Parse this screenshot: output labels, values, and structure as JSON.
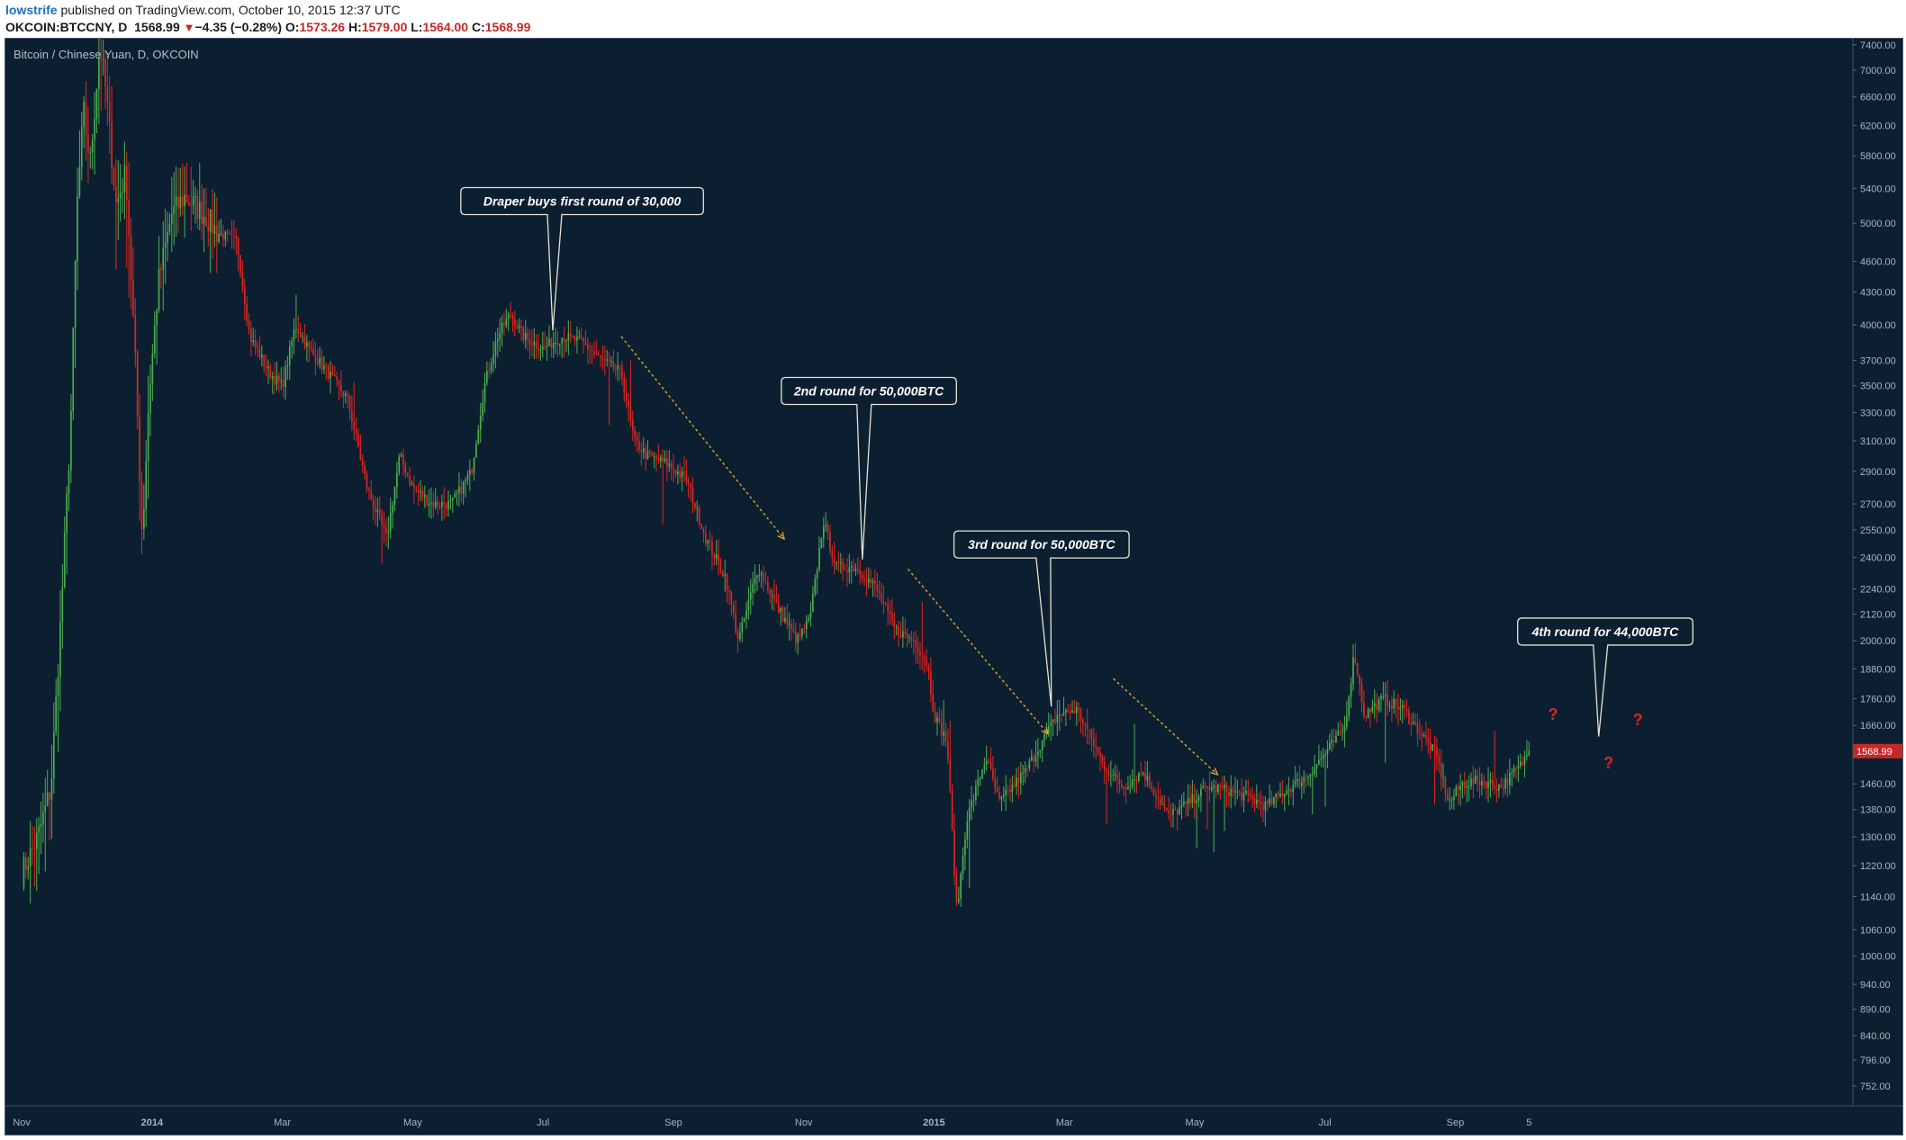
{
  "header": {
    "user": "lowstrife",
    "published_text": "published on TradingView.com, October 10, 2015 12:37 UTC",
    "symbol": "OKCOIN:BTCCNY, D",
    "last": "1568.99",
    "change_arrow": "▼",
    "change": "−4.35 (−0.28%)",
    "o_label": "O:",
    "o_value": "1573.26",
    "h_label": "H:",
    "h_value": "1579.00",
    "l_label": "L:",
    "l_value": "1564.00",
    "c_label": "C:",
    "c_value": "1568.99"
  },
  "colors": {
    "background": "#0c1f31",
    "up": "#4caf50",
    "down": "#e0261f",
    "annotation_border": "#e8e2cf",
    "dashed_arrow": "#e2a42a",
    "question_mark": "#e0261f",
    "price_label_bg": "#c62828",
    "axis_text": "#aab4bf"
  },
  "chart_data": {
    "type": "candlestick",
    "title": "Bitcoin / Chinese Yuan, D, OKCOIN",
    "scale": "log",
    "x_unit": "month index (0 = Nov 1 2013)",
    "x_ticks": [
      {
        "t": 0.0,
        "label": "Nov"
      },
      {
        "t": 2.0,
        "label": "2014"
      },
      {
        "t": 4.0,
        "label": "Mar"
      },
      {
        "t": 6.0,
        "label": "May"
      },
      {
        "t": 8.0,
        "label": "Jul"
      },
      {
        "t": 10.0,
        "label": "Sep"
      },
      {
        "t": 12.0,
        "label": "Nov"
      },
      {
        "t": 14.0,
        "label": "2015"
      },
      {
        "t": 16.0,
        "label": "Mar"
      },
      {
        "t": 18.0,
        "label": "May"
      },
      {
        "t": 20.0,
        "label": "Jul"
      },
      {
        "t": 22.0,
        "label": "Sep"
      },
      {
        "t": 23.13,
        "label": "5"
      }
    ],
    "x_range": [
      -0.25,
      28.1
    ],
    "y_range": [
      720,
      7500
    ],
    "y_ticks": [
      "7400.00",
      "7000.00",
      "6600.00",
      "6200.00",
      "5800.00",
      "5400.00",
      "5000.00",
      "4600.00",
      "4300.00",
      "4000.00",
      "3700.00",
      "3500.00",
      "3300.00",
      "3100.00",
      "2900.00",
      "2700.00",
      "2550.00",
      "2400.00",
      "2240.00",
      "2120.00",
      "2000.00",
      "1880.00",
      "1760.00",
      "1660.00",
      "1568.99",
      "1460.00",
      "1380.00",
      "1300.00",
      "1220.00",
      "1140.00",
      "1060.00",
      "1000.00",
      "940.00",
      "890.00",
      "840.00",
      "796.00",
      "752.00"
    ],
    "last_price": "1568.99",
    "price_path": [
      [
        0.0,
        1200
      ],
      [
        0.25,
        1300
      ],
      [
        0.45,
        1450
      ],
      [
        0.6,
        2100
      ],
      [
        0.75,
        3200
      ],
      [
        0.85,
        5200
      ],
      [
        0.95,
        6400
      ],
      [
        1.05,
        5700
      ],
      [
        1.2,
        7400
      ],
      [
        1.3,
        6600
      ],
      [
        1.45,
        5200
      ],
      [
        1.6,
        5600
      ],
      [
        1.75,
        3600
      ],
      [
        1.85,
        2500
      ],
      [
        1.95,
        3400
      ],
      [
        2.1,
        4400
      ],
      [
        2.3,
        5100
      ],
      [
        2.5,
        5300
      ],
      [
        2.8,
        5100
      ],
      [
        3.0,
        4900
      ],
      [
        3.3,
        4800
      ],
      [
        3.5,
        3900
      ],
      [
        3.8,
        3600
      ],
      [
        4.0,
        3500
      ],
      [
        4.2,
        4000
      ],
      [
        4.4,
        3800
      ],
      [
        4.7,
        3600
      ],
      [
        5.0,
        3400
      ],
      [
        5.3,
        2800
      ],
      [
        5.6,
        2500
      ],
      [
        5.8,
        3000
      ],
      [
        6.0,
        2800
      ],
      [
        6.3,
        2700
      ],
      [
        6.6,
        2700
      ],
      [
        6.9,
        2900
      ],
      [
        7.1,
        3500
      ],
      [
        7.3,
        3900
      ],
      [
        7.5,
        4100
      ],
      [
        7.7,
        3900
      ],
      [
        8.0,
        3800
      ],
      [
        8.3,
        3900
      ],
      [
        8.6,
        3850
      ],
      [
        8.9,
        3700
      ],
      [
        9.2,
        3600
      ],
      [
        9.4,
        3100
      ],
      [
        9.6,
        3000
      ],
      [
        9.9,
        2950
      ],
      [
        10.2,
        2850
      ],
      [
        10.5,
        2500
      ],
      [
        10.8,
        2300
      ],
      [
        11.0,
        2000
      ],
      [
        11.3,
        2350
      ],
      [
        11.6,
        2150
      ],
      [
        11.9,
        2000
      ],
      [
        12.1,
        2100
      ],
      [
        12.3,
        2600
      ],
      [
        12.5,
        2350
      ],
      [
        12.8,
        2350
      ],
      [
        13.1,
        2250
      ],
      [
        13.4,
        2050
      ],
      [
        13.7,
        2000
      ],
      [
        13.9,
        1900
      ],
      [
        14.0,
        1700
      ],
      [
        14.2,
        1600
      ],
      [
        14.35,
        1100
      ],
      [
        14.5,
        1350
      ],
      [
        14.8,
        1550
      ],
      [
        15.0,
        1400
      ],
      [
        15.2,
        1450
      ],
      [
        15.4,
        1500
      ],
      [
        15.6,
        1580
      ],
      [
        15.9,
        1700
      ],
      [
        16.2,
        1720
      ],
      [
        16.4,
        1620
      ],
      [
        16.6,
        1520
      ],
      [
        16.9,
        1450
      ],
      [
        17.2,
        1500
      ],
      [
        17.4,
        1430
      ],
      [
        17.6,
        1360
      ],
      [
        17.9,
        1400
      ],
      [
        18.2,
        1450
      ],
      [
        18.5,
        1440
      ],
      [
        18.8,
        1420
      ],
      [
        19.1,
        1390
      ],
      [
        19.4,
        1440
      ],
      [
        19.7,
        1480
      ],
      [
        20.0,
        1560
      ],
      [
        20.3,
        1650
      ],
      [
        20.45,
        1950
      ],
      [
        20.6,
        1700
      ],
      [
        20.9,
        1760
      ],
      [
        21.2,
        1720
      ],
      [
        21.5,
        1620
      ],
      [
        21.7,
        1560
      ],
      [
        21.9,
        1400
      ],
      [
        22.1,
        1460
      ],
      [
        22.4,
        1470
      ],
      [
        22.7,
        1450
      ],
      [
        23.0,
        1520
      ],
      [
        23.13,
        1568.99
      ]
    ],
    "annotations": [
      {
        "text": "Draper buys first round of 30,000",
        "t": 8.15,
        "price": 3950,
        "box_t": 8.6,
        "box_price": 5250
      },
      {
        "text": "2nd round for 50,000BTC",
        "t": 12.9,
        "price": 2390,
        "box_t": 13.0,
        "box_price": 3460
      },
      {
        "text": "3rd round for 50,000BTC",
        "t": 15.8,
        "price": 1730,
        "box_t": 15.65,
        "box_price": 2470
      },
      {
        "text": "4th round for 44,000BTC",
        "t": 24.2,
        "price": 1620,
        "box_t": 24.3,
        "box_price": 2040
      }
    ],
    "trend_arrows": [
      {
        "t1": 9.2,
        "p1": 3900,
        "t2": 11.7,
        "p2": 2500
      },
      {
        "t1": 13.6,
        "p1": 2340,
        "t2": 15.75,
        "p2": 1630
      },
      {
        "t1": 16.75,
        "p1": 1840,
        "t2": 18.35,
        "p2": 1490
      }
    ],
    "question_marks": [
      {
        "text": "?",
        "t": 23.5,
        "price": 1680
      },
      {
        "text": "?",
        "t": 24.35,
        "price": 1510
      },
      {
        "text": "?",
        "t": 24.8,
        "price": 1660
      }
    ]
  }
}
